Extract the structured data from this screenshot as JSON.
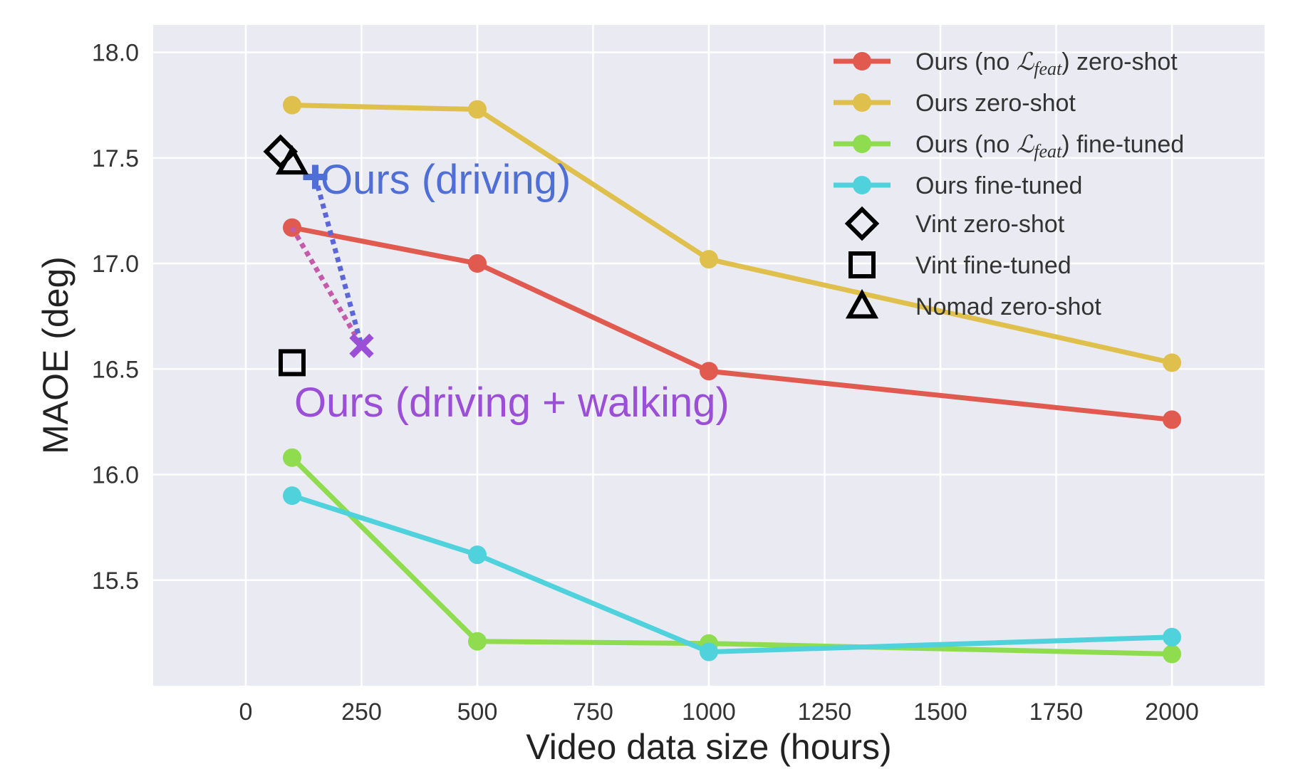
{
  "chart_data": {
    "type": "line",
    "xlabel": "Video data size (hours)",
    "ylabel": "MAOE (deg)",
    "xlim": [
      -200,
      2200
    ],
    "ylim": [
      15.0,
      18.13
    ],
    "xticks": [
      0,
      250,
      500,
      750,
      1000,
      1250,
      1500,
      1750,
      2000
    ],
    "xtick_labels": [
      "0",
      "250",
      "500",
      "750",
      "1000",
      "1250",
      "1500",
      "1750",
      "2000"
    ],
    "yticks": [
      15.5,
      16.0,
      16.5,
      17.0,
      17.5,
      18.0
    ],
    "ytick_labels": [
      "15.5",
      "16.0",
      "16.5",
      "17.0",
      "17.5",
      "18.0"
    ],
    "grid": true,
    "legend_position": "top-right",
    "series": [
      {
        "name_prefix": "Ours (no ",
        "name_symbol": "ℒ",
        "name_subscript": "feat",
        "name_suffix": ") zero-shot",
        "color": "#e05a4f",
        "x": [
          100,
          500,
          1000,
          2000
        ],
        "y": [
          17.17,
          17.0,
          16.49,
          16.26
        ]
      },
      {
        "name": "Ours zero-shot",
        "color": "#dfc04c",
        "x": [
          100,
          500,
          1000,
          2000
        ],
        "y": [
          17.75,
          17.73,
          17.02,
          16.53
        ]
      },
      {
        "name_prefix": "Ours (no ",
        "name_symbol": "ℒ",
        "name_subscript": "feat",
        "name_suffix": ") fine-tuned",
        "color": "#8fdc4f",
        "x": [
          100,
          500,
          1000,
          2000
        ],
        "y": [
          16.08,
          15.21,
          15.2,
          15.15
        ]
      },
      {
        "name": "Ours fine-tuned",
        "color": "#4fd2dc",
        "x": [
          100,
          500,
          1000,
          2000
        ],
        "y": [
          15.9,
          15.62,
          15.16,
          15.23
        ]
      }
    ],
    "markers": [
      {
        "name": "Vint zero-shot",
        "shape": "diamond",
        "x": 75,
        "y": 17.53
      },
      {
        "name": "Vint fine-tuned",
        "shape": "square",
        "x": 100,
        "y": 16.53
      },
      {
        "name": "Nomad zero-shot",
        "shape": "triangle",
        "x": 100,
        "y": 17.48
      }
    ],
    "annotations": [
      {
        "text": "Ours (driving)",
        "color": "#4f6fd6",
        "marker": "plus",
        "x": 150,
        "y": 17.41,
        "to_x": 250,
        "to_y": 16.61,
        "line_color": "#5b67d8"
      },
      {
        "text": "Ours (driving + walking)",
        "color": "#9b4fd6",
        "marker": "x",
        "x": 250,
        "y": 16.61,
        "from_x": 100,
        "from_y": 17.17,
        "line_color": "#c45aa8"
      }
    ],
    "colors": {
      "plot_background": "#eaeaf2",
      "grid": "#ffffff"
    }
  }
}
